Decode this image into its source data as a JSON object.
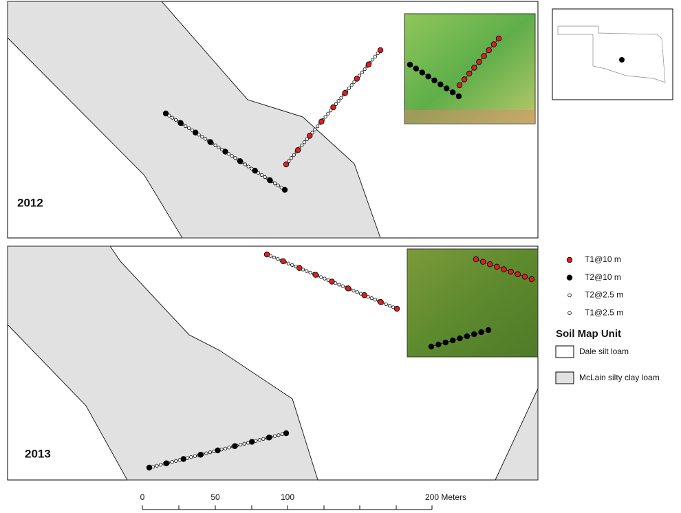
{
  "panels": [
    {
      "label": "2012"
    },
    {
      "label": "2013"
    }
  ],
  "legend": {
    "items": [
      "T1@10 m",
      "T2@10 m",
      "T2@2.5 m",
      "T1@2.5 m"
    ],
    "soil_title": "Soil Map Unit",
    "soil_units": [
      "Dale silt loam",
      "McLain silty clay loam"
    ]
  },
  "scale_bar": {
    "labels": [
      "0",
      "50",
      "100",
      "200 Meters"
    ]
  }
}
